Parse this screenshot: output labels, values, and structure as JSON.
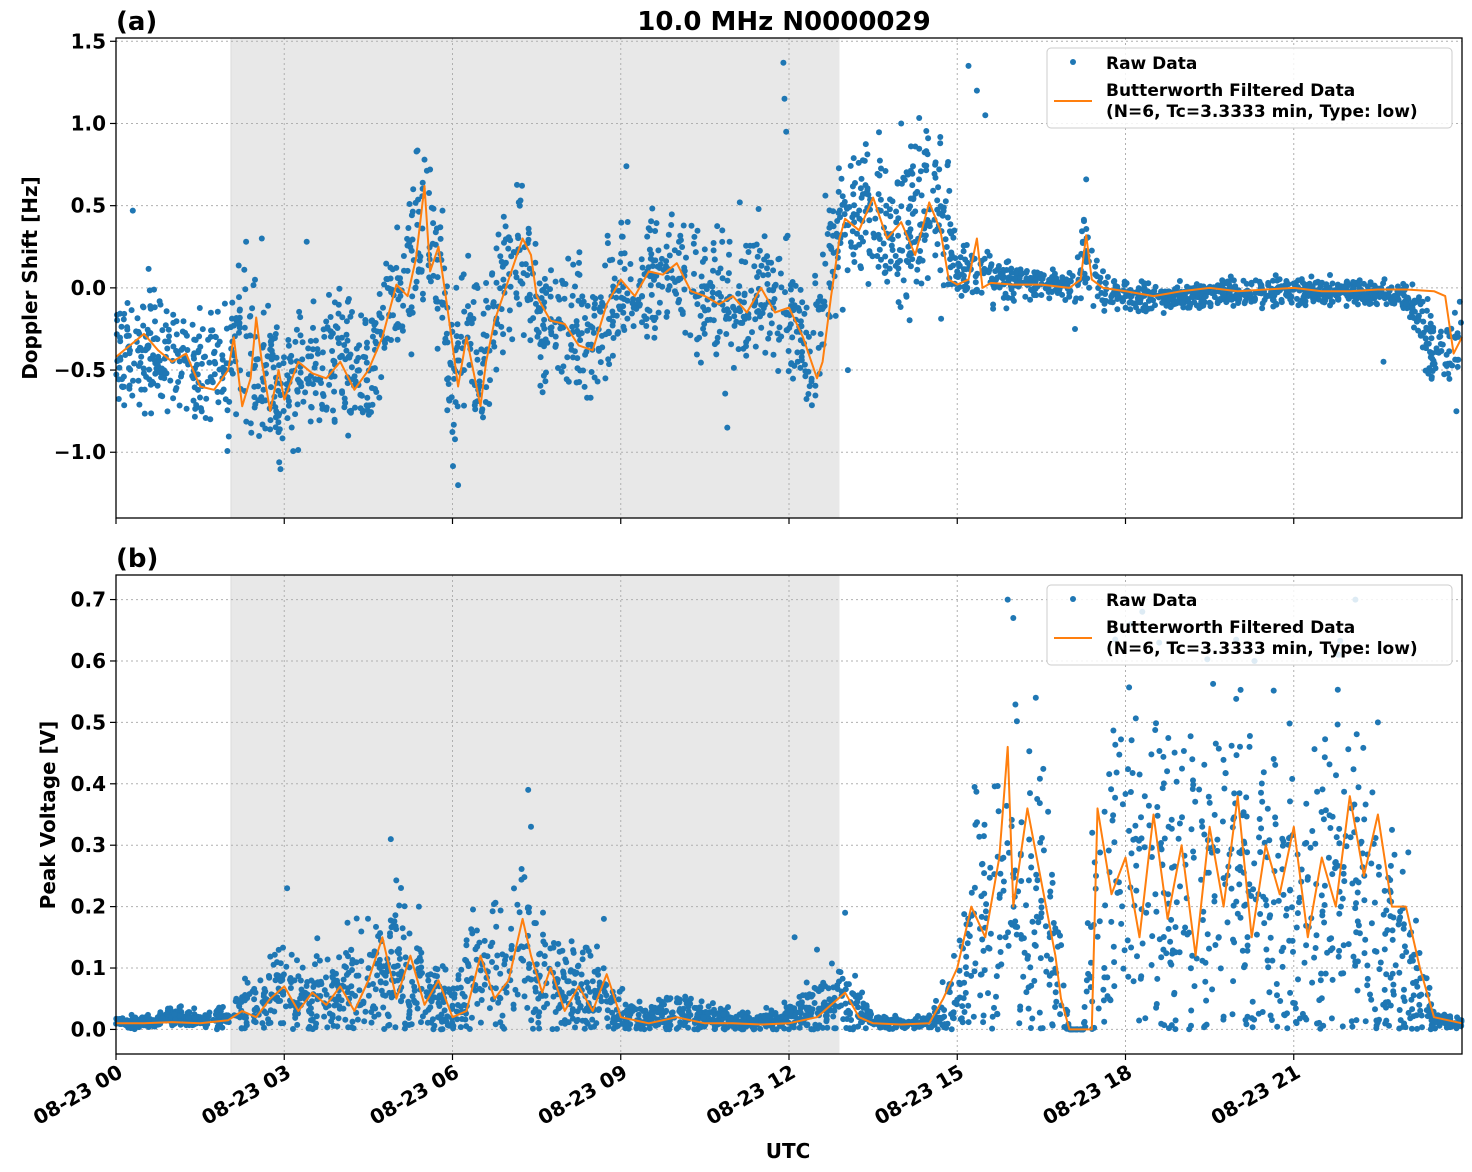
{
  "figure": {
    "title": "10.0 MHz N0000029",
    "xlabel": "UTC",
    "x_tick_labels": [
      "08-23 00",
      "08-23 03",
      "08-23 06",
      "08-23 09",
      "08-23 12",
      "08-23 15",
      "08-23 18",
      "08-23 21"
    ],
    "colors": {
      "raw": "#1f77b4",
      "filtered": "#ff7f0e",
      "shade": "#e8e8e8",
      "grid": "#b0b0b0"
    }
  },
  "legend": {
    "raw_label": "Raw Data",
    "filtered_label_line1": "Butterworth Filtered Data",
    "filtered_label_line2": "(N=6, Tc=3.3333 min, Type: low)",
    "placement": "top-right"
  },
  "chart_data": [
    {
      "type": "scatter",
      "panel_label": "(a)",
      "ylabel": "Doppler Shift [Hz]",
      "xlim_hours_utc": [
        0,
        24
      ],
      "ylim": [
        -1.4,
        1.52
      ],
      "y_ticks": [
        -1.0,
        -0.5,
        0.0,
        0.5,
        1.0,
        1.5
      ],
      "y_tick_labels": [
        "−1.0",
        "−0.5",
        "0.0",
        "0.5",
        "1.0",
        "1.5"
      ],
      "grid": true,
      "shaded_interval_hours_utc": [
        2.05,
        12.9
      ],
      "series": [
        {
          "name": "Raw Data",
          "style": "points",
          "x_hours_utc": [
            0,
            0.5,
            1,
            1.5,
            2,
            2.25,
            2.5,
            2.75,
            3,
            3.5,
            4,
            4.5,
            5,
            5.25,
            5.5,
            5.75,
            6,
            6.25,
            6.5,
            6.75,
            7,
            7.25,
            7.5,
            8,
            8.5,
            9,
            9.5,
            10,
            10.5,
            11,
            11.5,
            12,
            12.4,
            12.75,
            13,
            13.5,
            14,
            14.5,
            14.75,
            15,
            15.5,
            16,
            17,
            17.25,
            17.5,
            18,
            19,
            20,
            21,
            22,
            23,
            23.5,
            24
          ],
          "y": [
            -0.4,
            -0.35,
            -0.45,
            -0.5,
            -0.55,
            -0.2,
            -0.45,
            -0.6,
            -0.6,
            -0.5,
            -0.45,
            -0.5,
            -0.05,
            0.15,
            0.4,
            0.2,
            -0.65,
            -0.3,
            -0.6,
            -0.1,
            0.1,
            0.25,
            -0.2,
            -0.25,
            -0.35,
            0.0,
            0.05,
            0.1,
            -0.05,
            -0.1,
            0.0,
            -0.2,
            -0.5,
            0.3,
            0.4,
            0.5,
            0.3,
            0.5,
            0.45,
            0.1,
            0.05,
            0.05,
            0.0,
            0.2,
            0.0,
            -0.05,
            -0.05,
            -0.02,
            -0.02,
            -0.02,
            -0.05,
            -0.4,
            -0.3
          ],
          "spread": [
            0.2,
            0.25,
            0.25,
            0.25,
            0.25,
            0.3,
            0.3,
            0.3,
            0.25,
            0.25,
            0.25,
            0.25,
            0.25,
            0.3,
            0.35,
            0.3,
            0.3,
            0.3,
            0.3,
            0.25,
            0.25,
            0.3,
            0.25,
            0.25,
            0.25,
            0.25,
            0.25,
            0.2,
            0.25,
            0.3,
            0.25,
            0.25,
            0.2,
            0.25,
            0.25,
            0.25,
            0.3,
            0.35,
            0.3,
            0.1,
            0.1,
            0.08,
            0.05,
            0.15,
            0.08,
            0.06,
            0.05,
            0.05,
            0.05,
            0.05,
            0.06,
            0.15,
            0.15
          ],
          "outliers": [
            [
              0.3,
              0.47
            ],
            [
              2.6,
              0.3
            ],
            [
              3.4,
              0.28
            ],
            [
              5.5,
              0.78
            ],
            [
              5.6,
              0.72
            ],
            [
              6.1,
              -1.2
            ],
            [
              7.2,
              0.5
            ],
            [
              9.1,
              0.74
            ],
            [
              10.9,
              -0.85
            ],
            [
              11.9,
              1.37
            ],
            [
              11.92,
              1.15
            ],
            [
              11.95,
              0.95
            ],
            [
              14.0,
              1.0
            ],
            [
              15.2,
              1.35
            ],
            [
              15.35,
              1.2
            ],
            [
              15.5,
              1.05
            ],
            [
              13.05,
              -0.5
            ],
            [
              17.1,
              -0.25
            ],
            [
              17.3,
              0.66
            ],
            [
              22.6,
              -0.45
            ],
            [
              23.9,
              -0.75
            ]
          ]
        },
        {
          "name": "Butterworth Filtered Data\n(N=6, Tc=3.3333 min, Type: low)",
          "style": "line",
          "x_hours_utc": [
            0,
            0.25,
            0.5,
            0.75,
            1,
            1.25,
            1.5,
            1.75,
            2,
            2.1,
            2.25,
            2.4,
            2.5,
            2.6,
            2.75,
            2.9,
            3,
            3.25,
            3.5,
            3.75,
            4,
            4.25,
            4.5,
            4.75,
            5,
            5.2,
            5.35,
            5.5,
            5.6,
            5.75,
            5.9,
            6,
            6.1,
            6.25,
            6.5,
            6.6,
            6.75,
            7,
            7.25,
            7.4,
            7.5,
            7.75,
            8,
            8.25,
            8.5,
            8.75,
            9,
            9.25,
            9.5,
            9.75,
            10,
            10.25,
            10.5,
            10.75,
            11,
            11.25,
            11.5,
            11.75,
            12,
            12.25,
            12.5,
            12.6,
            12.75,
            12.9,
            13,
            13.25,
            13.5,
            13.75,
            14,
            14.25,
            14.5,
            14.7,
            14.85,
            15,
            15.2,
            15.35,
            15.45,
            15.6,
            16,
            16.5,
            17,
            17.2,
            17.3,
            17.4,
            17.6,
            18,
            18.5,
            19,
            19.5,
            20,
            20.5,
            21,
            21.5,
            22,
            22.5,
            23,
            23.5,
            23.7,
            23.85,
            24
          ],
          "y": [
            -0.42,
            -0.35,
            -0.28,
            -0.38,
            -0.45,
            -0.4,
            -0.6,
            -0.62,
            -0.5,
            -0.3,
            -0.72,
            -0.55,
            -0.18,
            -0.45,
            -0.75,
            -0.5,
            -0.68,
            -0.45,
            -0.52,
            -0.55,
            -0.45,
            -0.62,
            -0.5,
            -0.3,
            0.02,
            -0.05,
            0.18,
            0.62,
            0.1,
            0.25,
            -0.1,
            -0.35,
            -0.6,
            -0.3,
            -0.72,
            -0.45,
            -0.2,
            0.05,
            0.3,
            0.2,
            -0.05,
            -0.2,
            -0.22,
            -0.35,
            -0.38,
            -0.1,
            0.05,
            -0.05,
            0.1,
            0.08,
            0.15,
            -0.02,
            -0.05,
            -0.1,
            -0.05,
            -0.15,
            0.0,
            -0.15,
            -0.12,
            -0.3,
            -0.55,
            -0.45,
            -0.05,
            0.3,
            0.42,
            0.35,
            0.55,
            0.3,
            0.4,
            0.2,
            0.52,
            0.35,
            0.05,
            0.02,
            0.05,
            0.3,
            0.0,
            0.03,
            0.02,
            0.02,
            0.0,
            0.05,
            0.32,
            0.05,
            0.0,
            -0.02,
            -0.05,
            -0.02,
            0.0,
            -0.02,
            -0.01,
            0.0,
            -0.02,
            -0.02,
            -0.01,
            -0.01,
            -0.02,
            -0.05,
            -0.4,
            -0.3
          ]
        }
      ]
    },
    {
      "type": "scatter",
      "panel_label": "(b)",
      "ylabel": "Peak Voltage [V]",
      "xlim_hours_utc": [
        0,
        24
      ],
      "ylim": [
        -0.04,
        0.74
      ],
      "y_ticks": [
        0.0,
        0.1,
        0.2,
        0.3,
        0.4,
        0.5,
        0.6,
        0.7
      ],
      "y_tick_labels": [
        "0.0",
        "0.1",
        "0.2",
        "0.3",
        "0.4",
        "0.5",
        "0.6",
        "0.7"
      ],
      "grid": true,
      "shaded_interval_hours_utc": [
        2.05,
        12.9
      ],
      "series": [
        {
          "name": "Raw Data",
          "style": "points",
          "x_hours_utc": [
            0,
            0.5,
            1,
            1.5,
            2,
            2.5,
            3,
            3.5,
            4,
            4.5,
            5,
            5.5,
            6,
            6.5,
            7,
            7.25,
            7.5,
            7.75,
            8,
            8.5,
            9,
            9.5,
            10,
            10.5,
            11,
            11.5,
            12,
            12.5,
            13,
            13.5,
            14,
            14.5,
            15,
            15.25,
            15.5,
            15.75,
            16,
            16.25,
            16.5,
            16.75,
            17,
            17.25,
            17.5,
            18,
            18.5,
            19,
            19.5,
            20,
            20.5,
            21,
            21.5,
            22,
            22.5,
            23,
            23.5,
            24
          ],
          "y": [
            0.012,
            0.012,
            0.02,
            0.015,
            0.02,
            0.045,
            0.06,
            0.05,
            0.06,
            0.08,
            0.1,
            0.06,
            0.03,
            0.1,
            0.09,
            0.15,
            0.1,
            0.08,
            0.06,
            0.06,
            0.03,
            0.02,
            0.03,
            0.02,
            0.015,
            0.012,
            0.02,
            0.04,
            0.05,
            0.012,
            0.01,
            0.012,
            0.05,
            0.15,
            0.18,
            0.2,
            0.25,
            0.22,
            0.2,
            0.1,
            0.0,
            0.0,
            0.2,
            0.25,
            0.3,
            0.2,
            0.25,
            0.25,
            0.2,
            0.22,
            0.2,
            0.25,
            0.15,
            0.12,
            0.015,
            0.01
          ],
          "spread": [
            0.005,
            0.006,
            0.01,
            0.008,
            0.015,
            0.03,
            0.05,
            0.04,
            0.05,
            0.06,
            0.08,
            0.05,
            0.03,
            0.07,
            0.07,
            0.09,
            0.07,
            0.06,
            0.05,
            0.05,
            0.02,
            0.015,
            0.02,
            0.015,
            0.01,
            0.008,
            0.015,
            0.03,
            0.04,
            0.006,
            0.006,
            0.008,
            0.05,
            0.12,
            0.15,
            0.17,
            0.2,
            0.18,
            0.15,
            0.1,
            0.0,
            0.0,
            0.17,
            0.2,
            0.22,
            0.18,
            0.2,
            0.2,
            0.18,
            0.18,
            0.17,
            0.2,
            0.15,
            0.1,
            0.008,
            0.006
          ],
          "outliers": [
            [
              3.05,
              0.23
            ],
            [
              4.9,
              0.31
            ],
            [
              5.4,
              0.2
            ],
            [
              7.35,
              0.39
            ],
            [
              7.4,
              0.33
            ],
            [
              8.7,
              0.18
            ],
            [
              12.1,
              0.15
            ],
            [
              12.5,
              0.13
            ],
            [
              13.0,
              0.19
            ],
            [
              15.9,
              0.7
            ],
            [
              16.0,
              0.67
            ],
            [
              16.4,
              0.54
            ],
            [
              18.1,
              0.66
            ],
            [
              18.3,
              0.68
            ],
            [
              18.6,
              0.63
            ],
            [
              20.3,
              0.6
            ],
            [
              21.8,
              0.61
            ],
            [
              22.1,
              0.7
            ],
            [
              22.5,
              0.5
            ]
          ]
        },
        {
          "name": "Butterworth Filtered Data\n(N=6, Tc=3.3333 min, Type: low)",
          "style": "line",
          "x_hours_utc": [
            0,
            0.5,
            1,
            1.5,
            2,
            2.25,
            2.5,
            2.75,
            3,
            3.25,
            3.5,
            3.75,
            4,
            4.25,
            4.5,
            4.75,
            5,
            5.25,
            5.5,
            5.75,
            6,
            6.25,
            6.5,
            6.75,
            7,
            7.25,
            7.4,
            7.6,
            7.75,
            8,
            8.25,
            8.5,
            8.75,
            9,
            9.5,
            10,
            10.5,
            11,
            11.5,
            12,
            12.25,
            12.5,
            12.75,
            13,
            13.25,
            13.5,
            14,
            14.5,
            14.75,
            15,
            15.25,
            15.5,
            15.75,
            15.9,
            16,
            16.25,
            16.5,
            16.75,
            16.85,
            17.0,
            17.4,
            17.5,
            17.75,
            18,
            18.25,
            18.5,
            18.75,
            19,
            19.25,
            19.5,
            19.75,
            20,
            20.25,
            20.5,
            20.75,
            21,
            21.25,
            21.5,
            21.75,
            22,
            22.25,
            22.5,
            22.75,
            23,
            23.25,
            23.5,
            24
          ],
          "y": [
            0.01,
            0.01,
            0.012,
            0.01,
            0.015,
            0.03,
            0.02,
            0.05,
            0.07,
            0.03,
            0.06,
            0.04,
            0.07,
            0.03,
            0.08,
            0.15,
            0.05,
            0.12,
            0.04,
            0.08,
            0.02,
            0.03,
            0.12,
            0.05,
            0.08,
            0.18,
            0.12,
            0.06,
            0.1,
            0.03,
            0.07,
            0.03,
            0.09,
            0.02,
            0.01,
            0.02,
            0.01,
            0.01,
            0.008,
            0.01,
            0.015,
            0.02,
            0.04,
            0.06,
            0.02,
            0.01,
            0.008,
            0.01,
            0.05,
            0.1,
            0.2,
            0.15,
            0.28,
            0.46,
            0.2,
            0.36,
            0.24,
            0.12,
            0.05,
            0.0,
            0.0,
            0.36,
            0.22,
            0.28,
            0.15,
            0.35,
            0.18,
            0.3,
            0.12,
            0.33,
            0.2,
            0.38,
            0.15,
            0.3,
            0.22,
            0.33,
            0.15,
            0.28,
            0.2,
            0.38,
            0.25,
            0.35,
            0.2,
            0.2,
            0.1,
            0.02,
            0.01
          ]
        }
      ]
    }
  ]
}
